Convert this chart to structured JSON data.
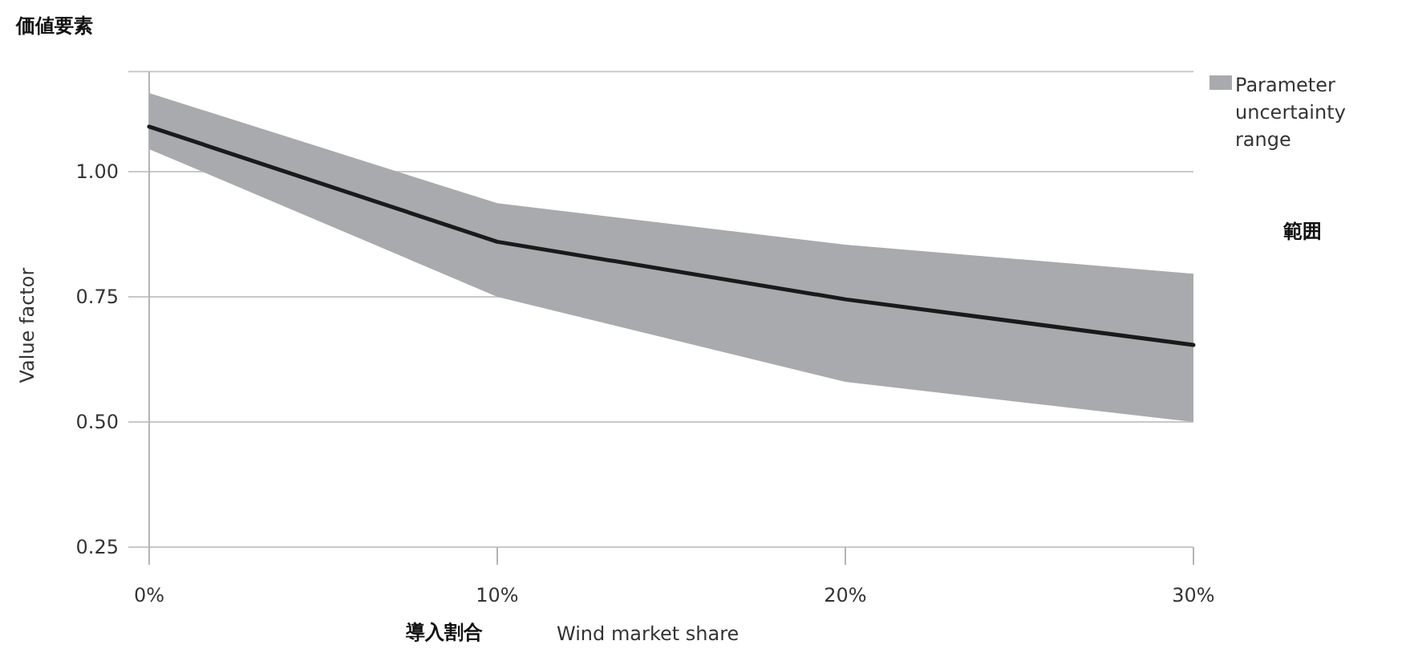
{
  "chart_data": {
    "type": "line",
    "title": "価値要素",
    "ylabel": "Value factor",
    "xlabel": "Wind market share",
    "annotations": [
      "導入割合",
      "範囲"
    ],
    "x": [
      0,
      10,
      20,
      30
    ],
    "series": [
      {
        "name": "Parameter uncertainty range",
        "color": "#1a1a1a",
        "values": [
          1.09,
          0.86,
          0.745,
          0.654
        ],
        "lower": [
          1.045,
          0.75,
          0.58,
          0.5
        ],
        "upper": [
          1.157,
          0.937,
          0.854,
          0.796
        ]
      }
    ],
    "xlim": [
      0,
      30
    ],
    "xticks": [
      {
        "value": 0,
        "label": "0%"
      },
      {
        "value": 10,
        "label": "10%"
      },
      {
        "value": 20,
        "label": "20%"
      },
      {
        "value": 30,
        "label": "30%"
      }
    ],
    "ylim": [
      0.25,
      1.2
    ],
    "yticks": [
      {
        "value": 0.25,
        "label": "0.25"
      },
      {
        "value": 0.5,
        "label": "0.50"
      },
      {
        "value": 0.75,
        "label": "0.75"
      },
      {
        "value": 1.0,
        "label": "1.00"
      },
      {
        "value": 1.2,
        "label": null
      }
    ],
    "grid": "y",
    "legend": "top right",
    "marker": "none",
    "line_style": "solid"
  }
}
